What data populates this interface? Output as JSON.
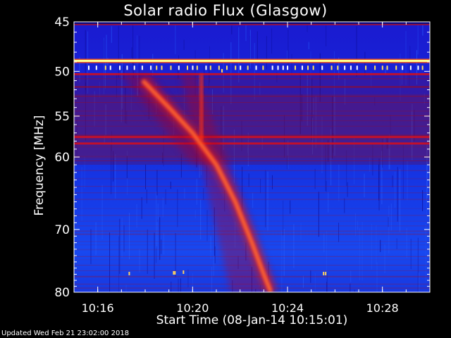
{
  "chart_data": {
    "type": "heatmap",
    "title": "Solar radio Flux (Glasgow)",
    "xlabel": "Start Time (08-Jan-14 10:15:01)",
    "ylabel": "Frequency [MHz]",
    "y_scale": "log",
    "ylim": [
      45,
      80
    ],
    "y_inverted": true,
    "x_range_minutes": [
      "10:15:01",
      "10:30:00"
    ],
    "x_ticks": [
      {
        "label": "10:16",
        "minute": 1.0
      },
      {
        "label": "10:20",
        "minute": 5.0
      },
      {
        "label": "10:24",
        "minute": 9.0
      },
      {
        "label": "10:28",
        "minute": 13.0
      }
    ],
    "y_ticks": [
      45,
      50,
      55,
      60,
      70,
      80
    ],
    "colormap": [
      "#0000a0",
      "#1030ff",
      "#b00020",
      "#ff2010",
      "#ff9030",
      "#ffffa0"
    ],
    "features": {
      "type_ii_burst_track": [
        {
          "minute": 2.9,
          "mhz": 51.0
        },
        {
          "minute": 4.0,
          "mhz": 54.0
        },
        {
          "minute": 5.0,
          "mhz": 57.0
        },
        {
          "minute": 6.0,
          "mhz": 61.0
        },
        {
          "minute": 6.8,
          "mhz": 66.0
        },
        {
          "minute": 7.5,
          "mhz": 72.0
        },
        {
          "minute": 8.0,
          "mhz": 77.0
        },
        {
          "minute": 8.3,
          "mhz": 80.0
        }
      ],
      "strong_interference_mhz": [
        48.9,
        50.3,
        57.5,
        58.3
      ]
    }
  },
  "footer": {
    "updated": "Updated Wed Feb 21 23:02:00 2018"
  }
}
